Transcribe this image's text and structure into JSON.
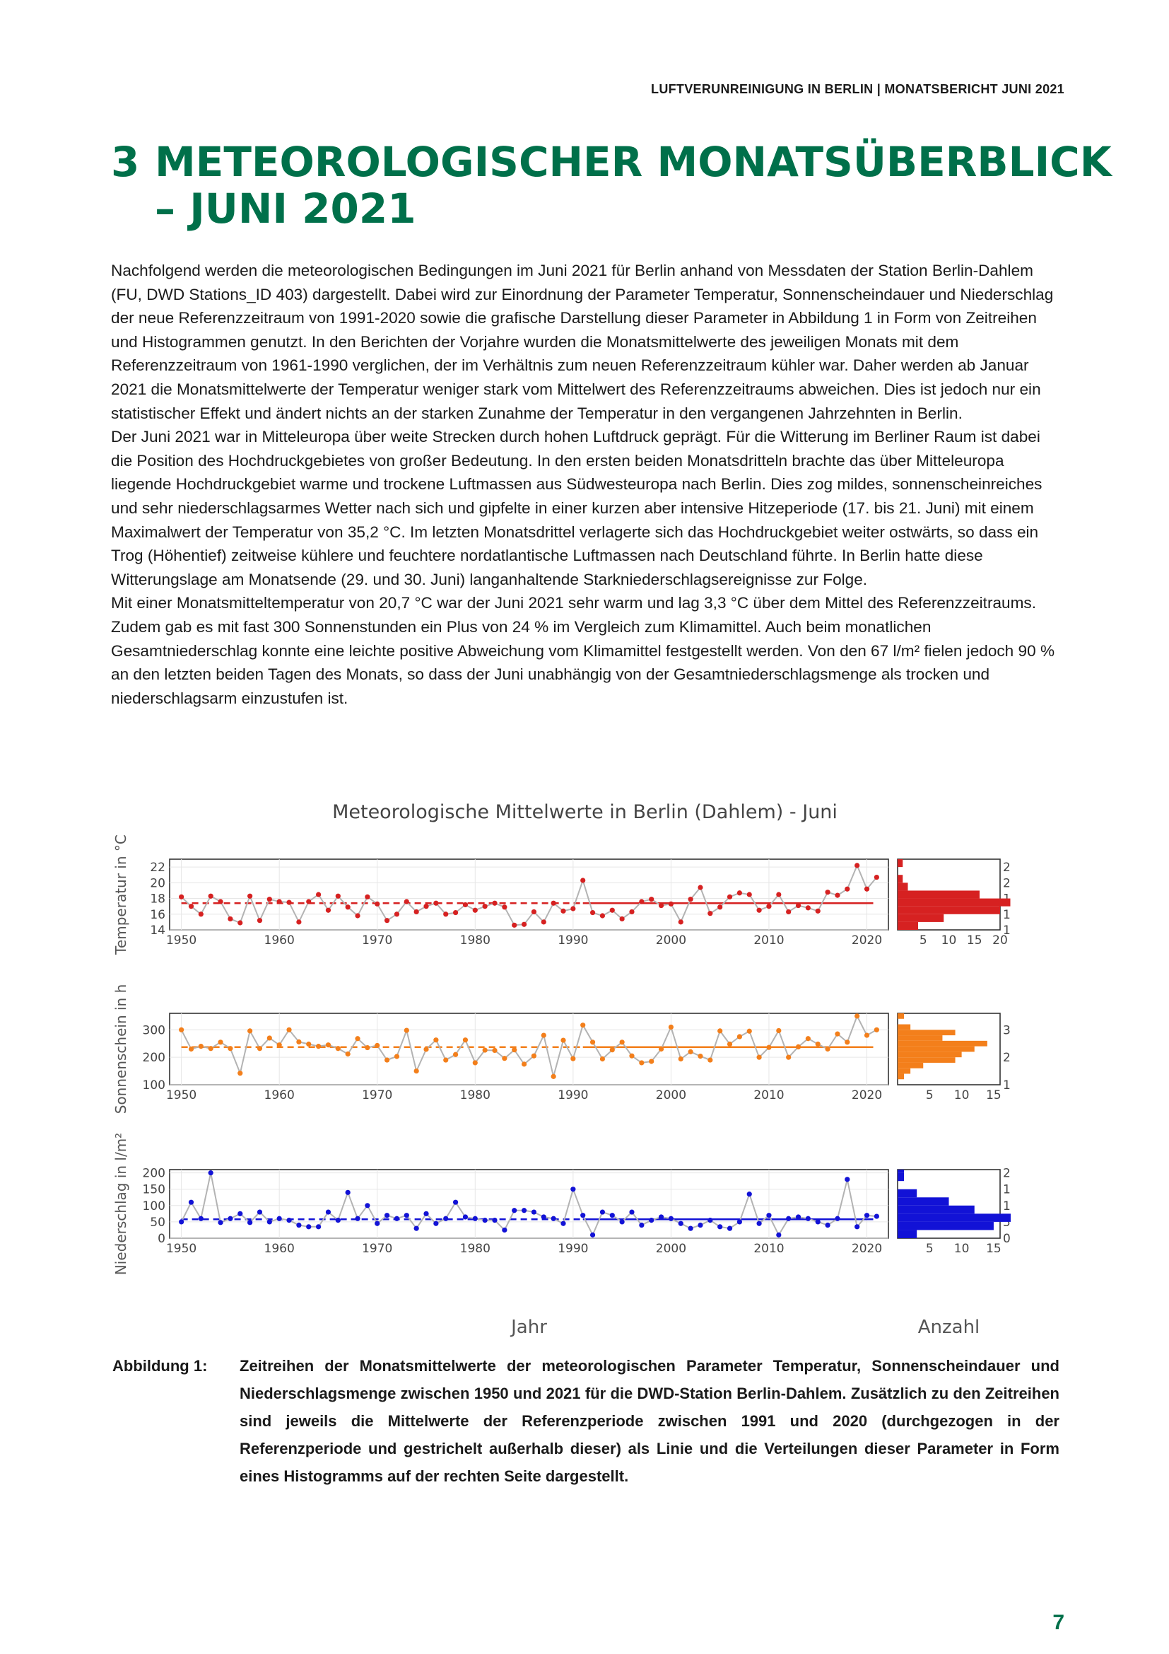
{
  "header": {
    "running_title": "LUFTVERUNREINIGUNG IN BERLIN | MONATSBERICHT JUNI 2021"
  },
  "section": {
    "number": "3",
    "title_line1": "METEOROLOGISCHER MONATSÜBERBLICK",
    "title_line2": "– JUNI 2021"
  },
  "intro": {
    "p1": "Nachfolgend werden die meteorologischen Bedingungen im Juni 2021 für Berlin anhand von Messdaten der Station Berlin-Dahlem (FU, DWD Stations_ID 403) dargestellt. Dabei wird zur Einordnung der Parameter Temperatur, Sonnenscheindauer und Niederschlag der neue Referenzzeitraum von 1991-2020 sowie die grafische Darstellung dieser Parameter in Abbildung 1 in Form von Zeitreihen und Histogrammen genutzt. In den Berichten der Vorjahre wurden die Monatsmittelwerte des jeweiligen Monats mit dem Referenzzeitraum von 1961-1990 verglichen, der im Verhältnis zum neuen Referenzzeitraum kühler war. Daher werden ab Januar 2021 die Monatsmittelwerte der Temperatur weniger stark vom Mittelwert des Referenzzeitraums abweichen. Dies ist jedoch nur ein statistischer Effekt und ändert nichts an der starken Zunahme der Temperatur in den vergangenen Jahrzehnten in Berlin.",
    "p2": "Der Juni 2021 war in Mitteleuropa über weite Strecken durch hohen Luftdruck geprägt. Für die Witterung im Berliner Raum ist dabei die Position des Hochdruckgebietes von großer Bedeutung. In den ersten beiden Monatsdritteln brachte das über Mitteleuropa liegende Hochdruckgebiet warme und trockene Luftmassen aus Südwesteuropa nach Berlin. Dies zog mildes, sonnenscheinreiches und sehr niederschlagsarmes Wetter nach sich und gipfelte in einer kurzen aber intensive Hitzeperiode (17. bis 21. Juni) mit einem Maximalwert der Temperatur von 35,2 °C. Im letzten Monatsdrittel verlagerte sich das Hochdruckgebiet weiter ostwärts, so dass ein Trog (Höhentief) zeitweise kühlere und feuchtere nordatlantische Luftmassen nach Deutschland führte. In Berlin hatte diese Witterungslage am Monatsende (29. und 30. Juni) langanhaltende Starkniederschlagsereignisse zur Folge.",
    "p3": "Mit einer Monatsmitteltemperatur von 20,7 °C war der Juni 2021 sehr warm und lag 3,3 °C über dem Mittel des Referenzzeitraums. Zudem gab es mit fast 300 Sonnenstunden ein Plus von 24 % im Vergleich zum Klimamittel. Auch beim monatlichen Gesamtniederschlag konnte eine leichte positive Abweichung vom Klimamittel festgestellt werden. Von den 67 l/m² fielen jedoch 90 % an den letzten beiden Tagen des Monats, so dass der Juni unabhängig von der Gesamtniederschlagsmenge als trocken und niederschlagsarm einzustufen ist."
  },
  "chart_data": {
    "type": "line",
    "title": "Meteorologische Mittelwerte in Berlin (Dahlem) - Juni",
    "xlabel": "Jahr",
    "hist_xlabel": "Anzahl",
    "x_ticks": [
      1950,
      1960,
      1970,
      1980,
      1990,
      2000,
      2010,
      2020
    ],
    "reference_period": [
      1991,
      2020
    ],
    "x": [
      1950,
      1951,
      1952,
      1953,
      1954,
      1955,
      1956,
      1957,
      1958,
      1959,
      1960,
      1961,
      1962,
      1963,
      1964,
      1965,
      1966,
      1967,
      1968,
      1969,
      1970,
      1971,
      1972,
      1973,
      1974,
      1975,
      1976,
      1977,
      1978,
      1979,
      1980,
      1981,
      1982,
      1983,
      1984,
      1985,
      1986,
      1987,
      1988,
      1989,
      1990,
      1991,
      1992,
      1993,
      1994,
      1995,
      1996,
      1997,
      1998,
      1999,
      2000,
      2001,
      2002,
      2003,
      2004,
      2005,
      2006,
      2007,
      2008,
      2009,
      2010,
      2011,
      2012,
      2013,
      2014,
      2015,
      2016,
      2017,
      2018,
      2019,
      2020,
      2021
    ],
    "panels": [
      {
        "name": "Temperatur",
        "ylabel": "Temperatur in °C",
        "color": "#d62121",
        "ylim": [
          14,
          23
        ],
        "y_ticks": [
          14,
          16,
          18,
          20,
          22
        ],
        "reference_mean": 17.4,
        "values": [
          18.2,
          17.0,
          16.0,
          18.3,
          17.6,
          15.4,
          14.9,
          18.3,
          15.2,
          17.9,
          17.6,
          17.5,
          15.0,
          17.6,
          18.5,
          16.5,
          18.3,
          16.9,
          15.8,
          18.2,
          17.3,
          15.2,
          16.0,
          17.6,
          16.3,
          17.0,
          17.4,
          16.0,
          16.2,
          17.2,
          16.5,
          17.0,
          17.4,
          16.9,
          14.6,
          14.7,
          16.3,
          15.0,
          17.4,
          16.4,
          16.7,
          20.3,
          16.2,
          15.8,
          16.5,
          15.4,
          16.3,
          17.6,
          17.9,
          17.1,
          17.3,
          15.0,
          17.9,
          19.4,
          16.1,
          16.9,
          18.2,
          18.7,
          18.5,
          16.5,
          17.0,
          18.5,
          16.3,
          17.1,
          16.8,
          16.4,
          18.8,
          18.4,
          19.2,
          22.2,
          19.2,
          20.7
        ],
        "hist": {
          "bins": [
            [
              14,
              15
            ],
            [
              15,
              16
            ],
            [
              16,
              17
            ],
            [
              17,
              18
            ],
            [
              18,
              19
            ],
            [
              19,
              20
            ],
            [
              20,
              21
            ],
            [
              21,
              22
            ],
            [
              22,
              23
            ]
          ],
          "counts": [
            4,
            9,
            20,
            22,
            16,
            2,
            1,
            0,
            1
          ],
          "x_ticks": [
            5,
            10,
            15,
            20
          ],
          "xlim": [
            0,
            20
          ]
        }
      },
      {
        "name": "Sonnenschein",
        "ylabel": "Sonnenschein in h",
        "color": "#f37f1b",
        "ylim": [
          100,
          360
        ],
        "y_ticks": [
          100,
          200,
          300
        ],
        "reference_mean": 237,
        "values": [
          300,
          230,
          240,
          232,
          255,
          232,
          142,
          296,
          232,
          270,
          245,
          300,
          256,
          248,
          240,
          245,
          232,
          212,
          268,
          235,
          243,
          190,
          203,
          298,
          150,
          229,
          263,
          190,
          210,
          263,
          180,
          226,
          225,
          196,
          227,
          175,
          205,
          280,
          130,
          262,
          195,
          317,
          255,
          194,
          227,
          255,
          205,
          180,
          185,
          230,
          310,
          194,
          220,
          204,
          190,
          296,
          248,
          275,
          295,
          200,
          236,
          297,
          200,
          238,
          268,
          248,
          230,
          285,
          255,
          350,
          280,
          300
        ],
        "hist": {
          "bins": [
            [
              120,
              140
            ],
            [
              140,
              160
            ],
            [
              160,
              180
            ],
            [
              180,
              200
            ],
            [
              200,
              220
            ],
            [
              220,
              240
            ],
            [
              240,
              260
            ],
            [
              260,
              280
            ],
            [
              280,
              300
            ],
            [
              300,
              320
            ],
            [
              320,
              340
            ],
            [
              340,
              360
            ]
          ],
          "counts": [
            1,
            2,
            4,
            9,
            10,
            12,
            14,
            7,
            9,
            2,
            0,
            1
          ],
          "x_ticks": [
            5,
            10,
            15
          ],
          "xlim": [
            0,
            16
          ]
        }
      },
      {
        "name": "Niederschlag",
        "ylabel": "Niederschlag in l/m²",
        "color": "#1212d6",
        "ylim": [
          0,
          210
        ],
        "y_ticks": [
          0,
          50,
          100,
          150,
          200
        ],
        "reference_mean": 58,
        "values": [
          50,
          110,
          60,
          200,
          48,
          60,
          75,
          48,
          80,
          50,
          60,
          55,
          40,
          35,
          35,
          80,
          55,
          140,
          60,
          100,
          45,
          70,
          60,
          70,
          30,
          75,
          45,
          60,
          110,
          65,
          60,
          55,
          55,
          25,
          85,
          85,
          80,
          65,
          60,
          45,
          150,
          70,
          10,
          80,
          70,
          50,
          80,
          40,
          55,
          65,
          60,
          45,
          30,
          40,
          55,
          35,
          30,
          50,
          135,
          45,
          70,
          10,
          60,
          65,
          60,
          50,
          40,
          60,
          180,
          35,
          70,
          67
        ],
        "hist": {
          "bins": [
            [
              0,
              25
            ],
            [
              25,
              50
            ],
            [
              50,
              75
            ],
            [
              75,
              100
            ],
            [
              100,
              125
            ],
            [
              125,
              150
            ],
            [
              150,
              175
            ],
            [
              175,
              200
            ],
            [
              200,
              225
            ]
          ],
          "counts": [
            3,
            15,
            30,
            12,
            8,
            3,
            0,
            1,
            1
          ],
          "x_ticks": [
            5,
            10,
            15
          ],
          "xlim": [
            0,
            16
          ]
        }
      }
    ]
  },
  "caption": {
    "label": "Abbildung 1:",
    "text": "Zeitreihen der Monatsmittelwerte der meteorologischen Parameter Temperatur, Sonnenscheindauer und Niederschlagsmenge zwischen 1950 und 2021 für die DWD-Station Berlin-Dahlem. Zusätzlich zu den Zeitreihen sind jeweils die Mittelwerte der Referenzperiode zwischen 1991 und 2020 (durchgezogen in der Referenzperiode und gestrichelt außerhalb dieser) als Linie und die Verteilungen dieser Parameter in Form eines Histogramms auf der rechten Seite dargestellt."
  },
  "footer": {
    "page_number": "7"
  }
}
